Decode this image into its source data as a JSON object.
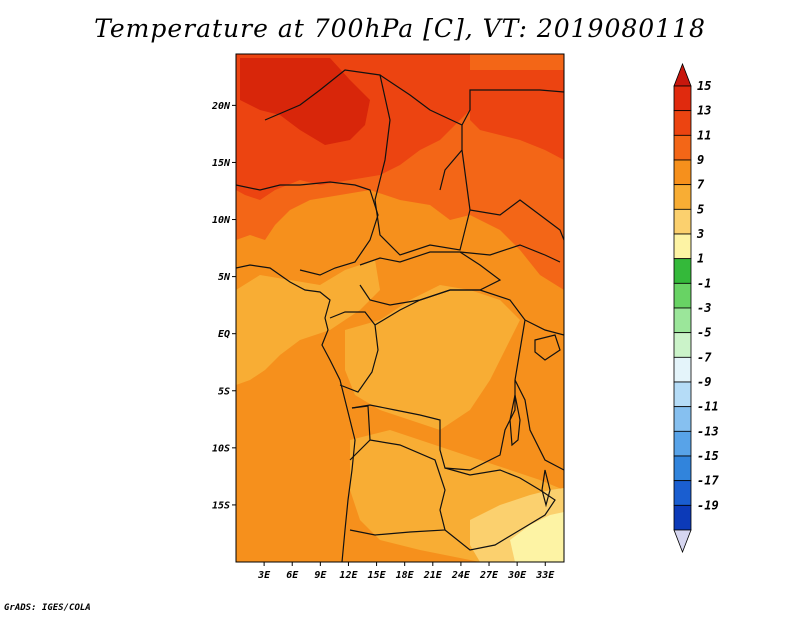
{
  "title": "Temperature at 700hPa [C], VT: 2019080118",
  "credit": "GrADS: IGES/COLA",
  "map": {
    "lat_labels": [
      "20N",
      "15N",
      "10N",
      "5N",
      "EQ",
      "5S",
      "10S",
      "15S"
    ],
    "lon_labels": [
      "3E",
      "6E",
      "9E",
      "12E",
      "15E",
      "18E",
      "21E",
      "24E",
      "27E",
      "30E",
      "33E"
    ],
    "lat_values": [
      20,
      15,
      10,
      5,
      0,
      -5,
      -10,
      -15
    ],
    "lon_values": [
      3,
      6,
      9,
      12,
      15,
      18,
      21,
      24,
      27,
      30,
      33
    ],
    "lat_range": [
      -20,
      24.5
    ],
    "lon_range": [
      0,
      35
    ]
  },
  "colorbar": {
    "labels": [
      "15",
      "13",
      "11",
      "9",
      "7",
      "5",
      "3",
      "1",
      "-1",
      "-3",
      "-5",
      "-7",
      "-9",
      "-11",
      "-13",
      "-15",
      "-17",
      "-19"
    ],
    "colors": [
      "#e02a0e",
      "#ec4411",
      "#f36617",
      "#f6901c",
      "#f8ad34",
      "#fbd06e",
      "#fdf3a4",
      "#34b93a",
      "#68d364",
      "#9be69a",
      "#cbf3c9",
      "#e4f4fa",
      "#b5dcf7",
      "#86c0f0",
      "#58a3e8",
      "#3184dc",
      "#1a5ed0",
      "#0c3ab8",
      "#0a1a88"
    ],
    "cap_top_color": "#c8170d",
    "cap_bottom_color": "#d6d6f0"
  },
  "fields": {
    "base_color": "#f6901c",
    "zones": [
      {
        "name": "north-hot",
        "color": "#f36617"
      },
      {
        "name": "sahara-core",
        "color": "#ec4411"
      },
      {
        "name": "peak",
        "color": "#d8260a"
      },
      {
        "name": "south-warm",
        "color": "#f8ad34"
      },
      {
        "name": "southeast-cool",
        "color": "#fbd06e"
      },
      {
        "name": "far-southeast",
        "color": "#fdf3a4"
      }
    ]
  }
}
